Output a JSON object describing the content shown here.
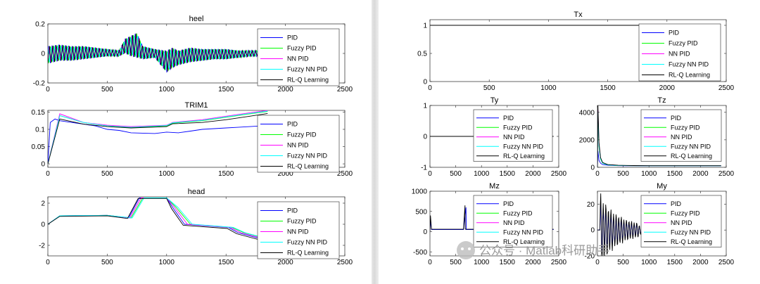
{
  "figures": [
    {
      "name": "left",
      "subplots": [
        {
          "id": "heel",
          "title": "heel",
          "xticks": [
            "0",
            "500",
            "1000",
            "1500",
            "2000",
            "2500"
          ],
          "yticks": [
            "-0.2",
            "0",
            "0.2"
          ]
        },
        {
          "id": "trim1",
          "title": "TRIM1",
          "xticks": [
            "0",
            "500",
            "1000",
            "1500",
            "2000",
            "2500"
          ],
          "yticks": [
            "0",
            "0.05",
            "0.1",
            "0.15"
          ]
        },
        {
          "id": "head",
          "title": "head",
          "xticks": [
            "0",
            "500",
            "1000",
            "1500",
            "2000",
            "2500"
          ],
          "yticks": [
            "-2",
            "0",
            "2"
          ]
        }
      ]
    },
    {
      "name": "right",
      "subplots": [
        {
          "id": "tx",
          "title": "Tx",
          "xticks": [
            "0",
            "500",
            "1000",
            "1500",
            "2000",
            "2500"
          ],
          "yticks": [
            "0",
            "0.5",
            "1"
          ]
        },
        {
          "id": "ty",
          "title": "Ty",
          "xticks": [
            "0",
            "500",
            "1000",
            "1500",
            "2000",
            "2500"
          ],
          "yticks": [
            "-1",
            "0",
            "1"
          ]
        },
        {
          "id": "tz",
          "title": "Tz",
          "xticks": [
            "0",
            "500",
            "1000",
            "1500",
            "2000",
            "2500"
          ],
          "yticks": [
            "0",
            "2000",
            "4000"
          ]
        },
        {
          "id": "mz",
          "title": "Mz",
          "xticks": [
            "0",
            "500",
            "1000",
            "1500",
            "2000",
            "2500"
          ],
          "yticks": [
            "-500",
            "0",
            "500",
            "1000"
          ]
        },
        {
          "id": "my",
          "title": "My",
          "xticks": [
            "0",
            "500",
            "1000",
            "1500",
            "2000",
            "2500"
          ],
          "yticks": [
            "-20",
            "0",
            "20"
          ]
        }
      ]
    }
  ],
  "legend": [
    {
      "label": "PID",
      "color": "#0000ff"
    },
    {
      "label": "Fuzzy PID",
      "color": "#00ff00"
    },
    {
      "label": "NN PID",
      "color": "#ff00ff"
    },
    {
      "label": "Fuzzy NN PID",
      "color": "#00ffff"
    },
    {
      "label": "RL-Q Learning",
      "color": "#000000"
    }
  ],
  "watermark": "公众号 · Matlab科研助手",
  "chart_data": [
    {
      "type": "line",
      "title": "heel",
      "xlim": [
        0,
        2500
      ],
      "ylim": [
        -0.2,
        0.2
      ],
      "series": [
        {
          "name": "PID"
        },
        {
          "name": "Fuzzy PID"
        },
        {
          "name": "NN PID"
        },
        {
          "name": "Fuzzy NN PID"
        },
        {
          "name": "RL-Q Learning"
        }
      ],
      "x": [
        0,
        100,
        200,
        300,
        400,
        500,
        600,
        650,
        700,
        750,
        800,
        900,
        1000,
        1050,
        1100,
        1200,
        1300,
        1400,
        1500,
        1600,
        1700,
        1800
      ],
      "values_envelope_upper": [
        0.05,
        0.06,
        0.05,
        0.05,
        0.04,
        0.03,
        0.02,
        0.1,
        0.12,
        0.14,
        0.05,
        0.03,
        0.02,
        0.04,
        0.02,
        0.04,
        0.03,
        0.03,
        0.03,
        0.02,
        0.02,
        0.02
      ],
      "values_envelope_lower": [
        -0.07,
        -0.05,
        -0.05,
        -0.04,
        -0.03,
        -0.02,
        -0.02,
        0.0,
        -0.02,
        -0.03,
        -0.04,
        -0.03,
        -0.13,
        -0.1,
        -0.08,
        -0.06,
        -0.05,
        -0.04,
        -0.04,
        -0.03,
        -0.02,
        -0.02
      ]
    },
    {
      "type": "line",
      "title": "TRIM1",
      "xlim": [
        0,
        2500
      ],
      "ylim": [
        -0.01,
        0.155
      ],
      "series": [
        {
          "name": "PID",
          "x": [
            0,
            20,
            60,
            100,
            200,
            300,
            400,
            500,
            600,
            700,
            800,
            900,
            1000,
            1100,
            1200,
            1300,
            1400,
            1500,
            1600,
            1700,
            1800,
            1850
          ],
          "values": [
            0.0,
            0.12,
            0.13,
            0.125,
            0.12,
            0.115,
            0.11,
            0.1,
            0.097,
            0.09,
            0.089,
            0.088,
            0.092,
            0.09,
            0.095,
            0.1,
            0.102,
            0.104,
            0.106,
            0.108,
            0.11,
            0.11
          ]
        },
        {
          "name": "Fuzzy PID",
          "x": [
            0,
            100,
            300,
            500,
            700,
            1000,
            1050,
            1300,
            1500,
            1700,
            1850
          ],
          "values": [
            0.0,
            0.14,
            0.12,
            0.11,
            0.105,
            0.11,
            0.118,
            0.125,
            0.135,
            0.145,
            0.152
          ]
        },
        {
          "name": "NN PID",
          "x": [
            0,
            100,
            300,
            500,
            700,
            1000,
            1050,
            1300,
            1500,
            1700,
            1850
          ],
          "values": [
            0.0,
            0.145,
            0.12,
            0.112,
            0.108,
            0.112,
            0.12,
            0.128,
            0.138,
            0.148,
            0.155
          ]
        },
        {
          "name": "Fuzzy NN PID",
          "x": [
            0,
            100,
            300,
            500,
            700,
            1000,
            1050,
            1300,
            1500,
            1700,
            1850
          ],
          "values": [
            0.0,
            0.14,
            0.12,
            0.11,
            0.106,
            0.111,
            0.119,
            0.126,
            0.136,
            0.146,
            0.153
          ]
        },
        {
          "name": "RL-Q Learning",
          "x": [
            0,
            100,
            300,
            500,
            700,
            1000,
            1050,
            1300,
            1500,
            1700,
            1850
          ],
          "values": [
            0.0,
            0.13,
            0.115,
            0.108,
            0.104,
            0.108,
            0.116,
            0.12,
            0.128,
            0.138,
            0.146
          ]
        }
      ]
    },
    {
      "type": "line",
      "title": "head",
      "xlim": [
        0,
        2500
      ],
      "ylim": [
        -3,
        2.6
      ],
      "series": [
        {
          "name": "PID",
          "x": [
            0,
            100,
            500,
            680,
            770,
            1000,
            1050,
            1150,
            1520,
            1600,
            2000,
            2400
          ],
          "values": [
            0.0,
            0.8,
            0.85,
            0.6,
            2.5,
            2.5,
            1.6,
            0.0,
            -0.3,
            -0.8,
            -2.0,
            -3.0
          ]
        },
        {
          "name": "Fuzzy PID",
          "x": [
            0,
            100,
            500,
            700,
            800,
            1000,
            1080,
            1200,
            1550,
            1650,
            2050,
            2400
          ],
          "values": [
            0.0,
            0.8,
            0.85,
            0.6,
            2.5,
            2.5,
            1.6,
            0.0,
            -0.3,
            -0.8,
            -2.0,
            -2.9
          ]
        },
        {
          "name": "NN PID",
          "x": [
            0,
            100,
            500,
            690,
            785,
            1000,
            1065,
            1175,
            1535,
            1625,
            2025,
            2400
          ],
          "values": [
            0.0,
            0.8,
            0.85,
            0.6,
            2.5,
            2.5,
            1.6,
            0.0,
            -0.3,
            -0.8,
            -2.0,
            -2.95
          ]
        },
        {
          "name": "Fuzzy NN PID",
          "x": [
            0,
            100,
            500,
            710,
            810,
            1000,
            1095,
            1215,
            1560,
            1660,
            2060,
            2400
          ],
          "values": [
            0.0,
            0.8,
            0.85,
            0.6,
            2.5,
            2.5,
            1.6,
            0.0,
            -0.3,
            -0.8,
            -2.0,
            -2.9
          ]
        },
        {
          "name": "RL-Q Learning",
          "x": [
            0,
            100,
            500,
            670,
            760,
            1000,
            1040,
            1140,
            1510,
            1590,
            1990,
            2400
          ],
          "values": [
            0.0,
            0.75,
            0.8,
            0.55,
            2.45,
            2.45,
            1.5,
            -0.1,
            -0.4,
            -0.9,
            -2.1,
            -2.95
          ]
        }
      ]
    },
    {
      "type": "line",
      "title": "Tx",
      "xlim": [
        0,
        2500
      ],
      "ylim": [
        0,
        1.1
      ],
      "series": [
        {
          "name": "RL-Q Learning",
          "x": [
            0,
            2400
          ],
          "values": [
            1,
            1
          ]
        }
      ]
    },
    {
      "type": "line",
      "title": "Ty",
      "xlim": [
        0,
        2500
      ],
      "ylim": [
        -1,
        1
      ],
      "series": [
        {
          "name": "RL-Q Learning",
          "x": [
            0,
            2400
          ],
          "values": [
            0,
            0
          ]
        }
      ]
    },
    {
      "type": "line",
      "title": "Tz",
      "xlim": [
        0,
        2500
      ],
      "ylim": [
        0,
        4500
      ],
      "series": [
        {
          "name": "PID",
          "x": [
            0,
            10,
            30,
            60,
            100,
            200,
            400,
            700,
            1000,
            2400
          ],
          "values": [
            0,
            1200,
            500,
            300,
            200,
            150,
            120,
            110,
            100,
            100
          ]
        },
        {
          "name": "Fuzzy PID",
          "x": [
            0,
            10,
            30,
            60,
            100,
            200,
            400,
            700,
            1000,
            2400
          ],
          "values": [
            0,
            3800,
            1500,
            600,
            300,
            180,
            130,
            120,
            110,
            110
          ]
        },
        {
          "name": "NN PID",
          "x": [
            0,
            10,
            30,
            60,
            100,
            200,
            400,
            700,
            1000,
            2400
          ],
          "values": [
            0,
            4200,
            1600,
            650,
            320,
            190,
            140,
            125,
            115,
            115
          ]
        },
        {
          "name": "Fuzzy NN PID",
          "x": [
            0,
            10,
            30,
            60,
            100,
            200,
            400,
            700,
            1000,
            2400
          ],
          "values": [
            0,
            4000,
            1550,
            620,
            310,
            185,
            135,
            122,
            112,
            112
          ]
        },
        {
          "name": "RL-Q Learning",
          "x": [
            0,
            10,
            30,
            60,
            100,
            200,
            400,
            700,
            1000,
            2400
          ],
          "values": [
            0,
            4500,
            1800,
            700,
            350,
            200,
            150,
            130,
            120,
            120
          ]
        }
      ]
    },
    {
      "type": "line",
      "title": "Mz",
      "xlim": [
        0,
        2500
      ],
      "ylim": [
        -600,
        1000
      ],
      "series": [
        {
          "name": "PID",
          "x": [
            0,
            10,
            30,
            650,
            700,
            705,
            720,
            1000,
            2400
          ],
          "values": [
            0,
            300,
            50,
            50,
            600,
            50,
            50,
            50,
            50
          ]
        },
        {
          "name": "RL-Q Learning",
          "x": [
            0,
            10,
            30,
            650,
            680,
            685,
            720,
            1000,
            2400
          ],
          "values": [
            0,
            400,
            60,
            60,
            650,
            60,
            60,
            60,
            60
          ]
        }
      ]
    },
    {
      "type": "line",
      "title": "My",
      "xlim": [
        0,
        2500
      ],
      "ylim": [
        -20,
        30
      ],
      "series": [
        {
          "name": "PID",
          "x": [
            0,
            50,
            100,
            200,
            300,
            400,
            500,
            600,
            700,
            800,
            900
          ],
          "values": [
            0,
            20,
            -15,
            12,
            -10,
            8,
            -6,
            5,
            -4,
            3,
            -2
          ]
        },
        {
          "name": "RL-Q Learning",
          "x": [
            0,
            50,
            100,
            200,
            300,
            400,
            500,
            600,
            700,
            800,
            900
          ],
          "values": [
            0,
            25,
            -18,
            14,
            -11,
            9,
            -7,
            6,
            -5,
            3,
            -2
          ]
        }
      ]
    }
  ]
}
